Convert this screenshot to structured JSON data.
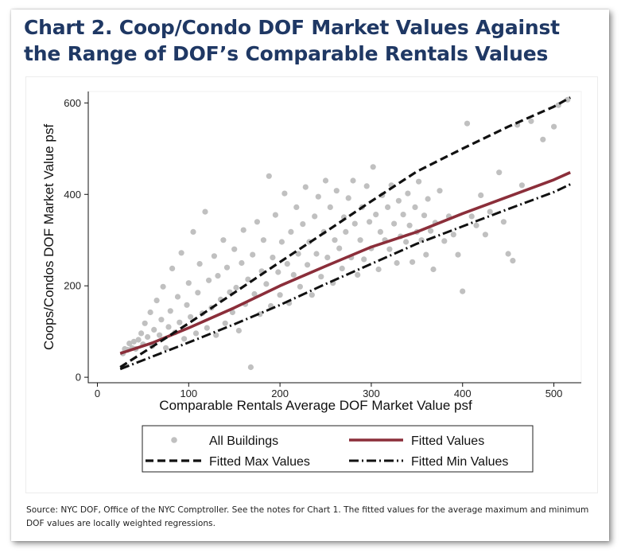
{
  "title": "Chart 2. Coop/Condo DOF Market Values Against the Range of DOF’s Comparable Rentals Values",
  "source_note": "Source: NYC DOF, Office of the NYC Comptroller. See the notes for Chart 1. The fitted values for the average maximum and minimum DOF values are locally weighted regressions.",
  "colors": {
    "title": "#1f3864",
    "scatter": "#c0c0c0",
    "fitted": "#8b2e3a",
    "fitted_max": "#111111",
    "fitted_min": "#111111"
  },
  "chart_data": {
    "type": "scatter",
    "xlabel": "Comparable Rentals Average DOF Market Value psf",
    "ylabel": "Coops/Condos DOF Market Value psf",
    "xlim": [
      -10,
      530
    ],
    "ylim": [
      -12,
      625
    ],
    "x_ticks": [
      "0",
      "100",
      "200",
      "300",
      "400",
      "500"
    ],
    "y_ticks": [
      "0",
      "200",
      "400",
      "600"
    ],
    "grid": false,
    "legend_position": "bottom",
    "legend": {
      "all_buildings": "All Buildings",
      "fitted": "Fitted Values",
      "fitted_max": "Fitted Max Values",
      "fitted_min": "Fitted Min Values"
    },
    "series": [
      {
        "name": "All Buildings",
        "kind": "scatter",
        "points": [
          [
            28,
            52
          ],
          [
            30,
            62
          ],
          [
            33,
            60
          ],
          [
            35,
            74
          ],
          [
            38,
            64
          ],
          [
            40,
            78
          ],
          [
            42,
            62
          ],
          [
            45,
            82
          ],
          [
            48,
            96
          ],
          [
            50,
            72
          ],
          [
            52,
            118
          ],
          [
            55,
            88
          ],
          [
            58,
            142
          ],
          [
            60,
            68
          ],
          [
            62,
            104
          ],
          [
            65,
            168
          ],
          [
            68,
            92
          ],
          [
            70,
            126
          ],
          [
            72,
            198
          ],
          [
            75,
            64
          ],
          [
            78,
            110
          ],
          [
            80,
            145
          ],
          [
            82,
            238
          ],
          [
            85,
            98
          ],
          [
            88,
            176
          ],
          [
            90,
            120
          ],
          [
            92,
            272
          ],
          [
            95,
            84
          ],
          [
            98,
            158
          ],
          [
            100,
            206
          ],
          [
            102,
            132
          ],
          [
            105,
            318
          ],
          [
            108,
            96
          ],
          [
            110,
            185
          ],
          [
            112,
            248
          ],
          [
            115,
            140
          ],
          [
            118,
            362
          ],
          [
            120,
            108
          ],
          [
            122,
            212
          ],
          [
            125,
            152
          ],
          [
            128,
            265
          ],
          [
            130,
            92
          ],
          [
            132,
            222
          ],
          [
            135,
            170
          ],
          [
            138,
            300
          ],
          [
            140,
            118
          ],
          [
            142,
            240
          ],
          [
            145,
            186
          ],
          [
            148,
            142
          ],
          [
            150,
            280
          ],
          [
            152,
            196
          ],
          [
            155,
            102
          ],
          [
            158,
            250
          ],
          [
            160,
            322
          ],
          [
            162,
            160
          ],
          [
            165,
            214
          ],
          [
            168,
            22
          ],
          [
            170,
            268
          ],
          [
            172,
            182
          ],
          [
            175,
            340
          ],
          [
            178,
            138
          ],
          [
            180,
            232
          ],
          [
            182,
            300
          ],
          [
            185,
            204
          ],
          [
            188,
            440
          ],
          [
            190,
            156
          ],
          [
            192,
            262
          ],
          [
            195,
            355
          ],
          [
            198,
            230
          ],
          [
            200,
            180
          ],
          [
            202,
            296
          ],
          [
            205,
            402
          ],
          [
            208,
            248
          ],
          [
            210,
            162
          ],
          [
            212,
            318
          ],
          [
            215,
            224
          ],
          [
            218,
            372
          ],
          [
            220,
            270
          ],
          [
            222,
            198
          ],
          [
            225,
            335
          ],
          [
            228,
            416
          ],
          [
            230,
            246
          ],
          [
            232,
            296
          ],
          [
            235,
            180
          ],
          [
            238,
            352
          ],
          [
            240,
            270
          ],
          [
            242,
            395
          ],
          [
            245,
            220
          ],
          [
            248,
            318
          ],
          [
            250,
            430
          ],
          [
            252,
            262
          ],
          [
            255,
            372
          ],
          [
            258,
            206
          ],
          [
            260,
            300
          ],
          [
            262,
            408
          ],
          [
            265,
            282
          ],
          [
            268,
            238
          ],
          [
            270,
            350
          ],
          [
            272,
            318
          ],
          [
            275,
            392
          ],
          [
            278,
            262
          ],
          [
            280,
            430
          ],
          [
            282,
            336
          ],
          [
            285,
            224
          ],
          [
            288,
            300
          ],
          [
            290,
            372
          ],
          [
            292,
            258
          ],
          [
            295,
            418
          ],
          [
            298,
            340
          ],
          [
            300,
            282
          ],
          [
            302,
            460
          ],
          [
            305,
            356
          ],
          [
            308,
            236
          ],
          [
            310,
            318
          ],
          [
            312,
            398
          ],
          [
            315,
            300
          ],
          [
            318,
            372
          ],
          [
            320,
            280
          ],
          [
            322,
            420
          ],
          [
            325,
            336
          ],
          [
            328,
            250
          ],
          [
            330,
            386
          ],
          [
            332,
            308
          ],
          [
            335,
            356
          ],
          [
            338,
            296
          ],
          [
            340,
            402
          ],
          [
            342,
            332
          ],
          [
            345,
            252
          ],
          [
            348,
            372
          ],
          [
            350,
            318
          ],
          [
            352,
            428
          ],
          [
            355,
            300
          ],
          [
            358,
            354
          ],
          [
            360,
            268
          ],
          [
            362,
            390
          ],
          [
            365,
            320
          ],
          [
            368,
            236
          ],
          [
            370,
            338
          ],
          [
            375,
            408
          ],
          [
            380,
            298
          ],
          [
            385,
            352
          ],
          [
            390,
            312
          ],
          [
            395,
            268
          ],
          [
            400,
            188
          ],
          [
            405,
            555
          ],
          [
            410,
            352
          ],
          [
            415,
            332
          ],
          [
            420,
            398
          ],
          [
            425,
            312
          ],
          [
            430,
            362
          ],
          [
            440,
            448
          ],
          [
            445,
            340
          ],
          [
            450,
            270
          ],
          [
            455,
            255
          ],
          [
            460,
            552
          ],
          [
            465,
            420
          ],
          [
            475,
            560
          ],
          [
            488,
            520
          ],
          [
            500,
            548
          ],
          [
            505,
            595
          ],
          [
            515,
            607
          ]
        ]
      },
      {
        "name": "Fitted Values",
        "kind": "line",
        "points": [
          [
            25,
            52
          ],
          [
            60,
            75
          ],
          [
            100,
            108
          ],
          [
            150,
            152
          ],
          [
            200,
            200
          ],
          [
            250,
            243
          ],
          [
            300,
            285
          ],
          [
            350,
            318
          ],
          [
            400,
            358
          ],
          [
            450,
            395
          ],
          [
            500,
            432
          ],
          [
            518,
            448
          ]
        ]
      },
      {
        "name": "Fitted Max Values",
        "kind": "line",
        "points": [
          [
            25,
            22
          ],
          [
            100,
            118
          ],
          [
            150,
            185
          ],
          [
            200,
            252
          ],
          [
            250,
            318
          ],
          [
            300,
            385
          ],
          [
            350,
            450
          ],
          [
            400,
            500
          ],
          [
            450,
            548
          ],
          [
            500,
            592
          ],
          [
            518,
            612
          ]
        ]
      },
      {
        "name": "Fitted Min Values",
        "kind": "line",
        "points": [
          [
            25,
            18
          ],
          [
            100,
            76
          ],
          [
            150,
            116
          ],
          [
            200,
            158
          ],
          [
            250,
            204
          ],
          [
            300,
            248
          ],
          [
            350,
            292
          ],
          [
            400,
            330
          ],
          [
            450,
            368
          ],
          [
            500,
            405
          ],
          [
            518,
            422
          ]
        ]
      }
    ]
  }
}
